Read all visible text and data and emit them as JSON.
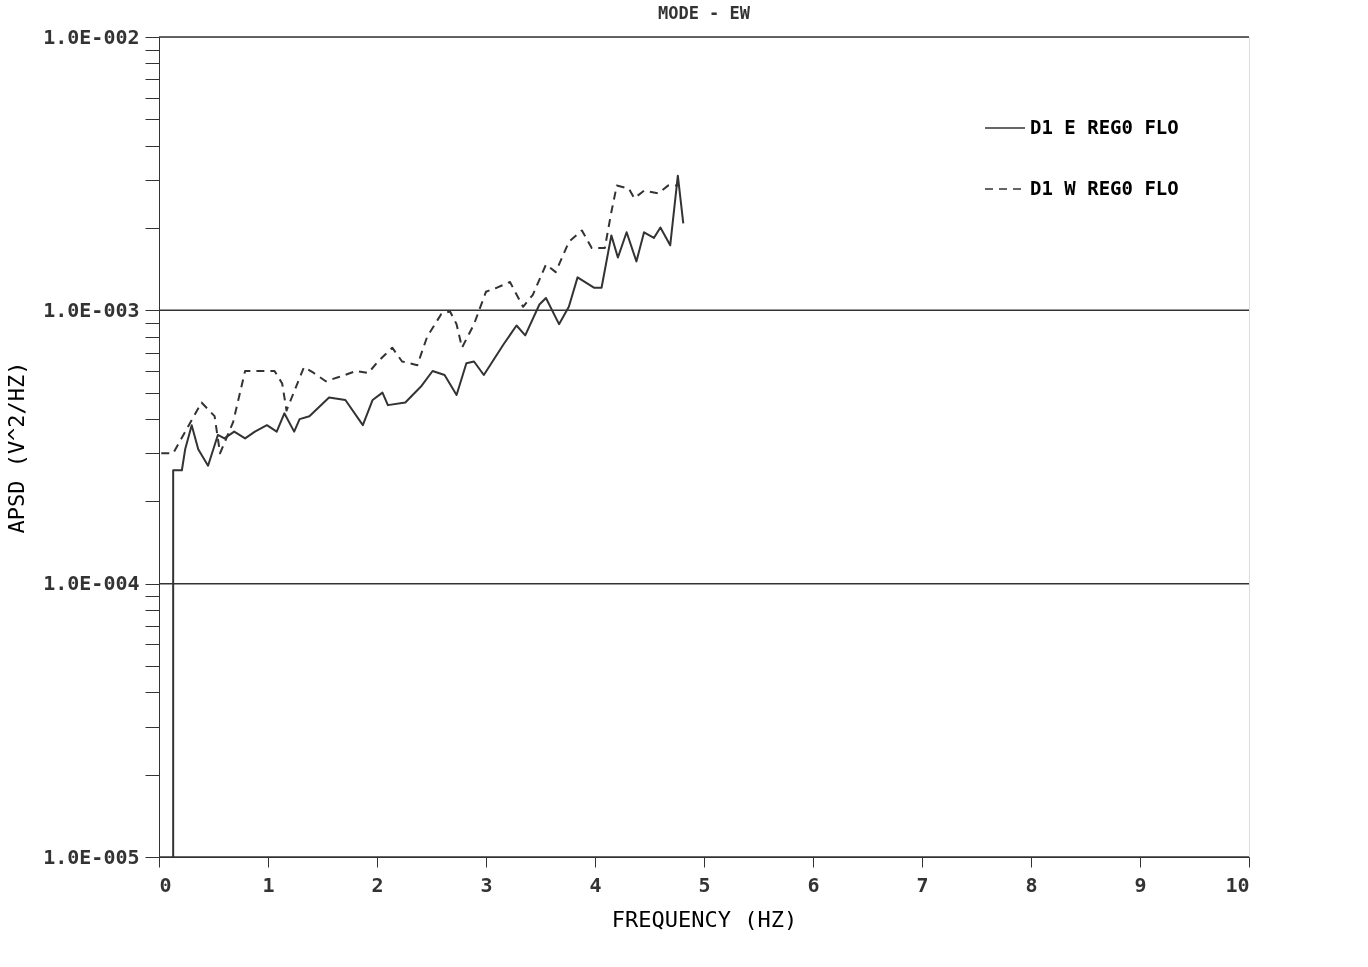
{
  "chart_data": {
    "type": "line",
    "title": "MODE - EW",
    "xlabel": "FREQUENCY (HZ)",
    "ylabel": "APSD (V^2/HZ)",
    "log": "y",
    "grid": "y",
    "legend": "top right",
    "xlim": [
      0,
      10
    ],
    "ylim": [
      1e-05,
      0.01
    ],
    "xticks": [
      0,
      1,
      2,
      3,
      4,
      5,
      6,
      7,
      8,
      9,
      10
    ],
    "yticks": [
      {
        "value": 1e-05,
        "label": "1.0E-005"
      },
      {
        "value": 2e-05,
        "label": null
      },
      {
        "value": 3e-05,
        "label": null
      },
      {
        "value": 4e-05,
        "label": null
      },
      {
        "value": 5e-05,
        "label": null
      },
      {
        "value": 6e-05,
        "label": null
      },
      {
        "value": 7e-05,
        "label": null
      },
      {
        "value": 8e-05,
        "label": null
      },
      {
        "value": 9e-05,
        "label": null
      },
      {
        "value": 0.0001,
        "label": "1.0E-004"
      },
      {
        "value": 0.0002,
        "label": null
      },
      {
        "value": 0.0003,
        "label": null
      },
      {
        "value": 0.0004,
        "label": null
      },
      {
        "value": 0.0005,
        "label": null
      },
      {
        "value": 0.0006,
        "label": null
      },
      {
        "value": 0.0007,
        "label": null
      },
      {
        "value": 0.0008,
        "label": null
      },
      {
        "value": 0.0009,
        "label": null
      },
      {
        "value": 0.001,
        "label": "1.0E-003"
      },
      {
        "value": 0.002,
        "label": null
      },
      {
        "value": 0.003,
        "label": null
      },
      {
        "value": 0.004,
        "label": null
      },
      {
        "value": 0.005,
        "label": null
      },
      {
        "value": 0.006,
        "label": null
      },
      {
        "value": 0.007,
        "label": null
      },
      {
        "value": 0.008,
        "label": null
      },
      {
        "value": 0.009,
        "label": null
      },
      {
        "value": 0.01,
        "label": "1.0E-002"
      }
    ],
    "series": [
      {
        "name": "D1 E REG0 FLO",
        "color": "#333333",
        "line_style": "solid",
        "x": [
          0.13,
          0.13,
          0.21,
          0.24,
          0.3,
          0.36,
          0.45,
          0.54,
          0.6,
          0.69,
          0.79,
          0.88,
          0.99,
          1.08,
          1.15,
          1.24,
          1.29,
          1.38,
          1.56,
          1.71,
          1.87,
          1.96,
          2.05,
          2.1,
          2.26,
          2.41,
          2.51,
          2.62,
          2.73,
          2.82,
          2.89,
          2.98,
          3.16,
          3.28,
          3.36,
          3.49,
          3.55,
          3.64,
          3.67,
          3.76,
          3.84,
          3.99,
          4.06,
          4.15,
          4.21,
          4.29,
          4.38,
          4.45,
          4.54,
          4.6,
          4.69,
          4.76,
          4.81
        ],
        "values": [
          1e-05,
          0.00026,
          0.00026,
          0.00031,
          0.00038,
          0.00031,
          0.00027,
          0.00035,
          0.00034,
          0.00036,
          0.00034,
          0.00036,
          0.00038,
          0.00036,
          0.00042,
          0.00036,
          0.0004,
          0.00041,
          0.00048,
          0.00047,
          0.00038,
          0.00047,
          0.0005,
          0.00045,
          0.00046,
          0.00053,
          0.0006,
          0.00058,
          0.00049,
          0.00064,
          0.00065,
          0.00058,
          0.00075,
          0.00088,
          0.00081,
          0.00105,
          0.00111,
          0.00094,
          0.00089,
          0.00103,
          0.00132,
          0.00121,
          0.00121,
          0.00188,
          0.00156,
          0.00193,
          0.00151,
          0.00193,
          0.00184,
          0.00201,
          0.00173,
          0.00311,
          0.00208
        ]
      },
      {
        "name": "D1 W REG0 FLO",
        "color": "#333333",
        "line_style": "dashed",
        "x": [
          0.0,
          0.0,
          0.13,
          0.39,
          0.51,
          0.56,
          0.68,
          0.79,
          0.93,
          1.06,
          1.13,
          1.17,
          1.33,
          1.42,
          1.53,
          1.65,
          1.81,
          1.92,
          2.01,
          2.14,
          2.23,
          2.37,
          2.46,
          2.59,
          2.67,
          2.73,
          2.78,
          2.89,
          3.0,
          3.1,
          3.22,
          3.34,
          3.43,
          3.55,
          3.64,
          3.76,
          3.88,
          3.97,
          4.09,
          4.15,
          4.2,
          4.31,
          4.36,
          4.45,
          4.58,
          4.67,
          4.76
        ],
        "values": [
          1e-05,
          0.0003,
          0.0003,
          0.00046,
          0.00041,
          0.0003,
          0.00039,
          0.0006,
          0.0006,
          0.0006,
          0.00054,
          0.00043,
          0.00062,
          0.00059,
          0.00055,
          0.00057,
          0.0006,
          0.00059,
          0.00065,
          0.00073,
          0.00065,
          0.00063,
          0.0008,
          0.00097,
          0.00099,
          0.00089,
          0.00073,
          0.00089,
          0.00117,
          0.00121,
          0.00127,
          0.00103,
          0.00114,
          0.00147,
          0.00138,
          0.00178,
          0.00196,
          0.00169,
          0.00169,
          0.00229,
          0.00286,
          0.00279,
          0.00257,
          0.00274,
          0.00268,
          0.00286,
          0.00286
        ]
      }
    ]
  }
}
